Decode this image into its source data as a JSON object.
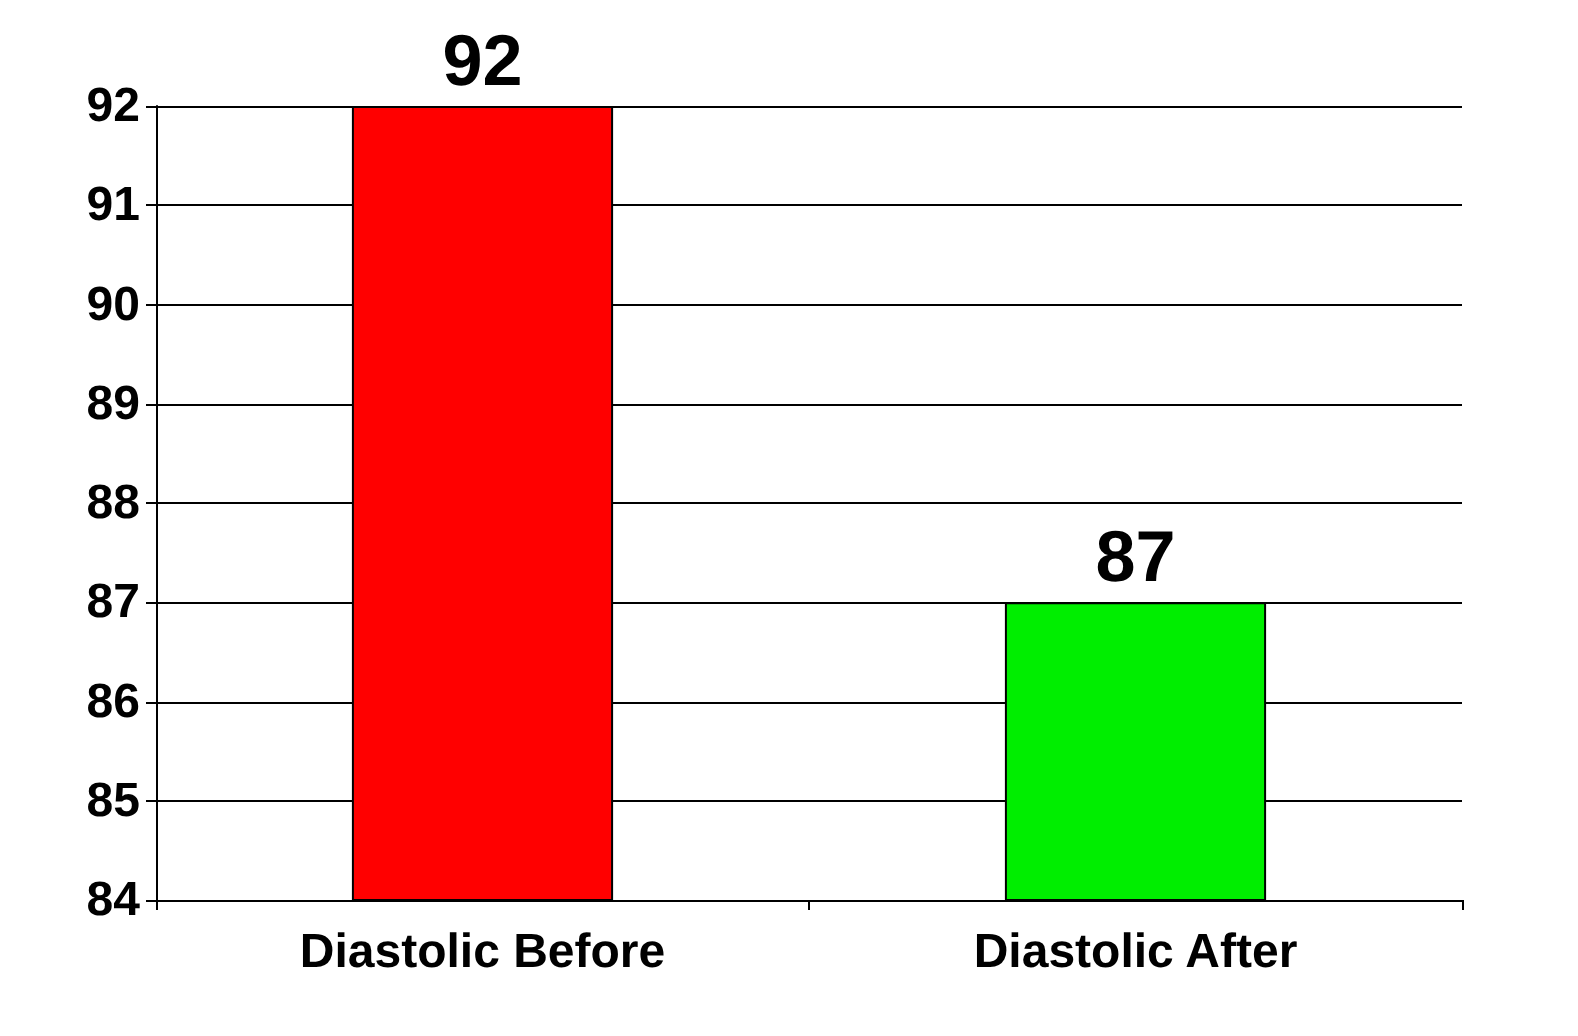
{
  "chart_data": {
    "type": "bar",
    "categories": [
      "Diastolic Before",
      "Diastolic After"
    ],
    "values": [
      92,
      87
    ],
    "colors": [
      "#ff0000",
      "#00ee00"
    ],
    "ylim": [
      84,
      92
    ],
    "yticks": [
      84,
      85,
      86,
      87,
      88,
      89,
      90,
      91,
      92
    ],
    "grid": "y",
    "data_labels": true
  }
}
